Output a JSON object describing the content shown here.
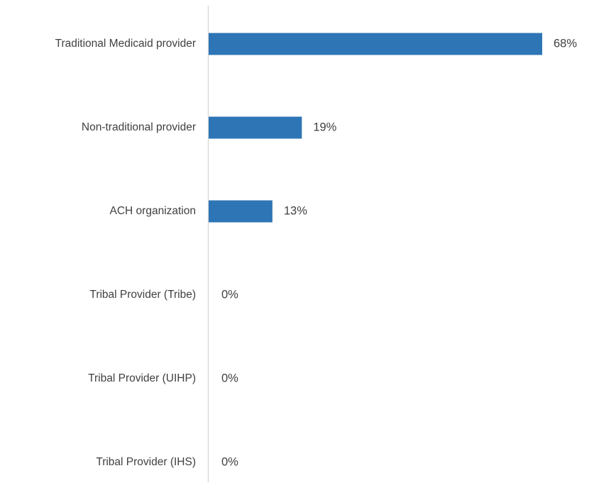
{
  "chart_data": {
    "type": "bar",
    "orientation": "horizontal",
    "title": "",
    "xlabel": "",
    "ylabel": "",
    "categories": [
      "Traditional Medicaid provider",
      "Non-traditional provider",
      "ACH organization",
      "Tribal Provider (Tribe)",
      "Tribal Provider (UIHP)",
      "Tribal Provider (IHS)"
    ],
    "values": [
      68,
      19,
      13,
      0,
      0,
      0
    ],
    "value_labels": [
      "68%",
      "19%",
      "13%",
      "0%",
      "0%",
      "0%"
    ],
    "xlim": [
      0,
      68
    ],
    "grid": false,
    "legend": "none",
    "colors": {
      "bar": "#2E75B6",
      "axis": "#D9D9D9",
      "text": "#404040"
    }
  }
}
